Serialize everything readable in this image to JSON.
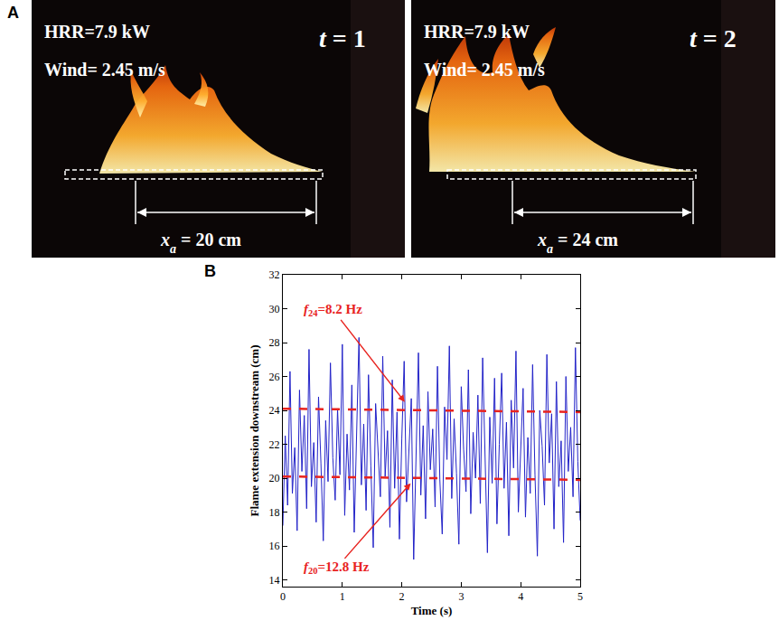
{
  "panel_a": {
    "label": "A",
    "frames": [
      {
        "hrr": "HRR=7.9 kW",
        "wind": "Wind= 2.45 m/s",
        "time": {
          "var": "t",
          "rest": " = 1"
        },
        "extent": {
          "var": "x",
          "sub": "a",
          "rest": " = 20 cm"
        }
      },
      {
        "hrr": "HRR=7.9 kW",
        "wind": "Wind= 2.45 m/s",
        "time": {
          "var": "t",
          "rest": " = 2"
        },
        "extent": {
          "var": "x",
          "sub": "a",
          "rest": " = 24 cm"
        }
      }
    ]
  },
  "chart_data": {
    "type": "line",
    "label": "B",
    "x_label": "Time (s)",
    "y_label": "Flame extension downstream (cm)",
    "xlim": [
      0,
      5
    ],
    "xticks": [
      0,
      1,
      2,
      3,
      4,
      5
    ],
    "ylim": [
      13.6,
      32
    ],
    "yticks": [
      14,
      16,
      18,
      20,
      22,
      24,
      26,
      28,
      30,
      32
    ],
    "grid": false,
    "series": [
      {
        "color": "#2323c8",
        "line_style": "solid",
        "x": [
          0,
          0.04,
          0.08,
          0.12,
          0.16,
          0.2,
          0.24,
          0.28,
          0.32,
          0.36,
          0.4,
          0.44,
          0.48,
          0.52,
          0.56,
          0.6,
          0.64,
          0.68,
          0.72,
          0.76,
          0.8,
          0.84,
          0.88,
          0.92,
          0.96,
          1,
          1.04,
          1.08,
          1.12,
          1.16,
          1.2,
          1.24,
          1.28,
          1.32,
          1.36,
          1.4,
          1.44,
          1.48,
          1.52,
          1.56,
          1.6,
          1.64,
          1.68,
          1.72,
          1.76,
          1.8,
          1.84,
          1.88,
          1.92,
          1.96,
          2,
          2.04,
          2.08,
          2.12,
          2.16,
          2.2,
          2.24,
          2.28,
          2.32,
          2.36,
          2.4,
          2.44,
          2.48,
          2.52,
          2.56,
          2.6,
          2.64,
          2.68,
          2.72,
          2.76,
          2.8,
          2.84,
          2.88,
          2.92,
          2.96,
          3,
          3.04,
          3.08,
          3.12,
          3.16,
          3.2,
          3.24,
          3.28,
          3.32,
          3.36,
          3.4,
          3.44,
          3.48,
          3.52,
          3.56,
          3.6,
          3.64,
          3.68,
          3.72,
          3.76,
          3.8,
          3.84,
          3.88,
          3.92,
          3.96,
          4,
          4.04,
          4.08,
          4.12,
          4.16,
          4.2,
          4.24,
          4.28,
          4.32,
          4.36,
          4.4,
          4.44,
          4.48,
          4.52,
          4.56,
          4.6,
          4.64,
          4.68,
          4.72,
          4.76,
          4.8,
          4.84,
          4.88,
          4.92,
          4.96,
          5
        ],
        "values": [
          17.2,
          22.5,
          18.4,
          26.3,
          19.1,
          21.8,
          16.9,
          25.2,
          20.4,
          23.7,
          18.2,
          27.6,
          19.5,
          22.1,
          17.4,
          24.8,
          20.9,
          16.3,
          23.4,
          19.8,
          26.8,
          21.2,
          18.7,
          24.1,
          20.2,
          27.9,
          17.8,
          22.6,
          19.3,
          25.5,
          16.8,
          21.9,
          28.3,
          19.6,
          23.2,
          18.1,
          26.1,
          20.7,
          15.9,
          24.4,
          21.4,
          18.9,
          27.2,
          20.1,
          22.8,
          17.1,
          25.8,
          19.4,
          23.9,
          16.4,
          22.3,
          26.9,
          18.6,
          21.5,
          24.7,
          15.2,
          20.8,
          27.4,
          19.0,
          23.1,
          17.6,
          25.1,
          20.5,
          22.9,
          18.3,
          26.6,
          19.9,
          16.7,
          24.2,
          21.1,
          27.8,
          18.8,
          23.5,
          20.3,
          16.1,
          25.4,
          21.7,
          19.2,
          26.4,
          17.9,
          22.7,
          20.0,
          24.9,
          18.5,
          27.1,
          21.3,
          15.6,
          23.6,
          19.7,
          25.9,
          17.3,
          22.0,
          26.2,
          19.4,
          23.3,
          16.6,
          24.6,
          20.6,
          27.5,
          18.0,
          21.6,
          25.3,
          17.7,
          22.4,
          19.1,
          26.7,
          20.2,
          15.4,
          24.0,
          21.9,
          18.4,
          27.3,
          20.9,
          23.8,
          17.0,
          25.7,
          19.5,
          22.2,
          16.2,
          26.0,
          20.4,
          23.0,
          18.9,
          27.7,
          21.0,
          17.5
        ]
      }
    ],
    "reference_lines": [
      {
        "x": [
          0,
          5
        ],
        "values": [
          24.1,
          23.9
        ],
        "color": "#e8231f",
        "line_style": "dashed",
        "label": {
          "var": "f",
          "sub": "24",
          "rest": "=8.2 Hz"
        }
      },
      {
        "x": [
          0,
          5
        ],
        "values": [
          20.1,
          19.9
        ],
        "color": "#e8231f",
        "line_style": "dashed",
        "label": {
          "var": "f",
          "sub": "20",
          "rest": "=12.8 Hz"
        }
      }
    ]
  }
}
